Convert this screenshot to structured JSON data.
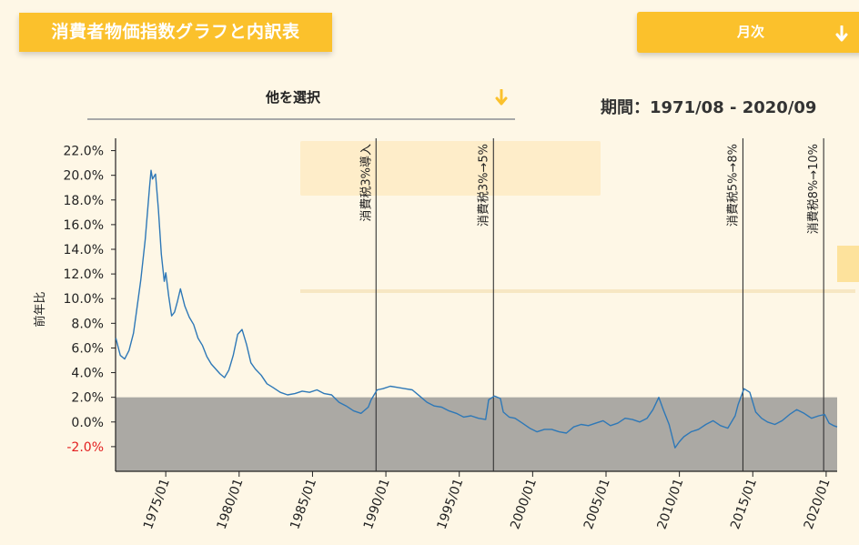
{
  "header": {
    "title": "消費者物価指数グラフと内訳表",
    "period_button": "月次",
    "selector": "他を選択",
    "period_label": "期間：1971/08 - 2020/09"
  },
  "colors": {
    "accent": "#fbc12c",
    "line": "#2e78b7",
    "band": "#aba9a4",
    "negative": "#e32020"
  },
  "icons": {
    "dropdown": "arrow-down-icon"
  },
  "chart_data": {
    "type": "line",
    "ylabel": "前年比",
    "ylim": [
      -4.0,
      23.0
    ],
    "yticks": [
      22,
      20,
      18,
      16,
      14,
      12,
      10,
      8,
      6,
      4,
      2,
      0,
      -2
    ],
    "ytick_labels": [
      "22.0%",
      "20.0%",
      "18.0%",
      "16.0%",
      "14.0%",
      "12.0%",
      "10.0%",
      "8.0%",
      "6.0%",
      "4.0%",
      "2.0%",
      "0.0%",
      "-2.0%"
    ],
    "xlim": [
      1971.58,
      2020.75
    ],
    "xticks": [
      1975,
      1980,
      1985,
      1990,
      1995,
      2000,
      2005,
      2010,
      2015,
      2020
    ],
    "xtick_labels": [
      "1975/01",
      "1980/01",
      "1985/01",
      "1990/01",
      "1995/01",
      "2000/01",
      "2005/01",
      "2010/01",
      "2015/01",
      "2020/01"
    ],
    "band": {
      "from": -4.0,
      "to": 2.0
    },
    "annotations": [
      {
        "x": 1989.33,
        "label": "消費税3%導入"
      },
      {
        "x": 1997.33,
        "label": "消費税3%→5%"
      },
      {
        "x": 2014.33,
        "label": "消費税5%→8%"
      },
      {
        "x": 2019.83,
        "label": "消費税8%→10%"
      }
    ],
    "series": [
      {
        "x": [
          1971.6,
          1971.9,
          1972.2,
          1972.5,
          1972.8,
          1973.0,
          1973.3,
          1973.6,
          1973.9,
          1974.0,
          1974.1,
          1974.3,
          1974.5,
          1974.7,
          1974.9,
          1975.0,
          1975.2,
          1975.4,
          1975.6,
          1975.8,
          1976.0,
          1976.3,
          1976.6,
          1976.9,
          1977.2,
          1977.5,
          1977.8,
          1978.1,
          1978.4,
          1978.7,
          1979.0,
          1979.3,
          1979.6,
          1979.9,
          1980.2,
          1980.5,
          1980.8,
          1981.1,
          1981.5,
          1981.9,
          1982.3,
          1982.8,
          1983.3,
          1983.8,
          1984.3,
          1984.8,
          1985.3,
          1985.8,
          1986.3,
          1986.8,
          1987.3,
          1987.8,
          1988.3,
          1988.8,
          1989.0,
          1989.4,
          1989.8,
          1990.3,
          1990.8,
          1991.3,
          1991.8,
          1992.3,
          1992.8,
          1993.3,
          1993.8,
          1994.3,
          1994.8,
          1995.3,
          1995.8,
          1996.3,
          1996.8,
          1997.0,
          1997.4,
          1997.8,
          1998.0,
          1998.4,
          1998.8,
          1999.3,
          1999.8,
          2000.3,
          2000.8,
          2001.3,
          2001.8,
          2002.3,
          2002.8,
          2003.3,
          2003.8,
          2004.3,
          2004.8,
          2005.3,
          2005.8,
          2006.3,
          2006.8,
          2007.3,
          2007.8,
          2008.2,
          2008.6,
          2008.9,
          2009.3,
          2009.7,
          2010.0,
          2010.3,
          2010.8,
          2011.3,
          2011.8,
          2012.3,
          2012.8,
          2013.3,
          2013.8,
          2014.0,
          2014.4,
          2014.8,
          2015.2,
          2015.6,
          2016.0,
          2016.5,
          2017.0,
          2017.5,
          2018.0,
          2018.5,
          2019.0,
          2019.5,
          2019.9,
          2020.2,
          2020.5,
          2020.75
        ],
        "y": [
          6.8,
          5.4,
          5.1,
          5.8,
          7.2,
          8.9,
          11.5,
          14.8,
          19.1,
          20.4,
          19.7,
          20.1,
          17.2,
          13.6,
          11.4,
          12.1,
          10.2,
          8.6,
          8.9,
          9.8,
          10.8,
          9.4,
          8.5,
          7.9,
          6.8,
          6.2,
          5.3,
          4.7,
          4.3,
          3.9,
          3.6,
          4.2,
          5.4,
          7.1,
          7.5,
          6.3,
          4.8,
          4.3,
          3.8,
          3.1,
          2.8,
          2.4,
          2.2,
          2.3,
          2.5,
          2.4,
          2.6,
          2.3,
          2.2,
          1.6,
          1.3,
          0.9,
          0.7,
          1.2,
          1.8,
          2.6,
          2.7,
          2.9,
          2.8,
          2.7,
          2.6,
          2.1,
          1.6,
          1.3,
          1.2,
          0.9,
          0.7,
          0.4,
          0.5,
          0.3,
          0.2,
          1.8,
          2.1,
          1.9,
          0.8,
          0.4,
          0.3,
          -0.1,
          -0.5,
          -0.8,
          -0.6,
          -0.6,
          -0.8,
          -0.9,
          -0.4,
          -0.2,
          -0.3,
          -0.1,
          0.1,
          -0.3,
          -0.1,
          0.3,
          0.2,
          0.0,
          0.3,
          1.0,
          2.0,
          1.0,
          -0.2,
          -2.1,
          -1.6,
          -1.2,
          -0.8,
          -0.6,
          -0.2,
          0.1,
          -0.3,
          -0.5,
          0.5,
          1.4,
          2.7,
          2.4,
          0.8,
          0.3,
          0.0,
          -0.2,
          0.1,
          0.6,
          1.0,
          0.7,
          0.3,
          0.5,
          0.6,
          -0.1,
          -0.3,
          -0.4
        ]
      }
    ]
  }
}
